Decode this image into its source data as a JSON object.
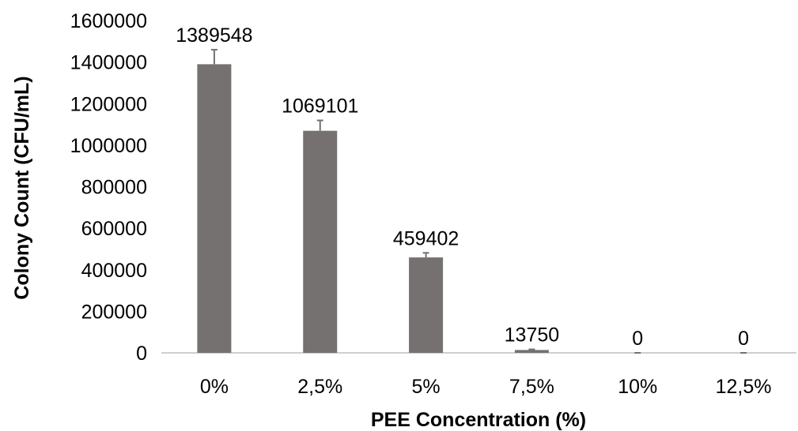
{
  "chart_data": {
    "type": "bar",
    "title": "",
    "xlabel": "PEE Concentration (%)",
    "ylabel": "Colony Count (CFU/mL)",
    "categories": [
      "0%",
      "2,5%",
      "5%",
      "7,5%",
      "10%",
      "12,5%"
    ],
    "values": [
      1389548,
      1069101,
      459402,
      13750,
      0,
      0
    ],
    "value_labels": [
      "1389548",
      "1069101",
      "459402",
      "13750",
      "0",
      "0"
    ],
    "error": [
      70000,
      50000,
      22000,
      3000,
      0,
      0
    ],
    "ylim": [
      0,
      1600000
    ],
    "yticks": [
      0,
      200000,
      400000,
      600000,
      800000,
      1000000,
      1200000,
      1400000,
      1600000
    ],
    "ytick_labels": [
      "0",
      "200000",
      "400000",
      "600000",
      "800000",
      "1000000",
      "1200000",
      "1400000",
      "1600000"
    ],
    "grid": false,
    "legend": "none",
    "bar_color": "#757170",
    "axis_color": "#bfbfbf"
  }
}
